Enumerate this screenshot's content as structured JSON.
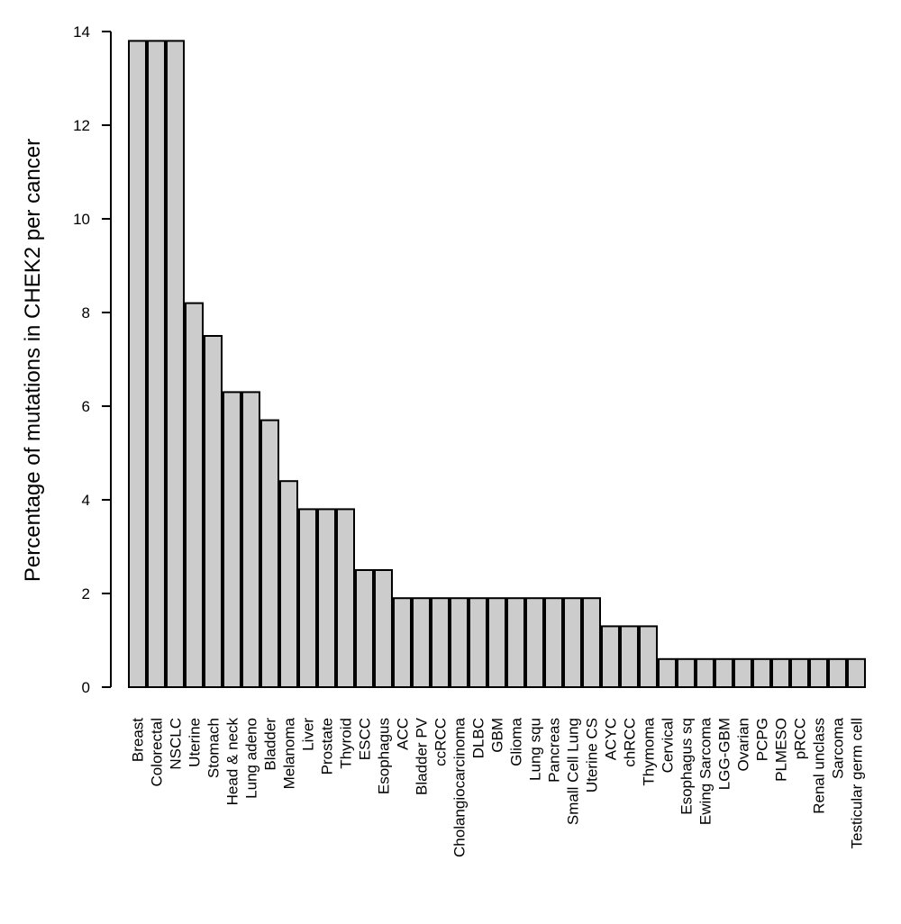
{
  "chart_data": {
    "type": "bar",
    "title": "",
    "xlabel": "",
    "ylabel": "Percentage of mutations in CHEK2 per cancer",
    "ylim": [
      0,
      14
    ],
    "yticks": [
      0,
      2,
      4,
      6,
      8,
      10,
      12,
      14
    ],
    "grid": false,
    "bar_color": "#cccccc",
    "edge_color": "#000000",
    "categories": [
      "Breast",
      "Colorectal",
      "NSCLC",
      "Uterine",
      "Stomach",
      "Head & neck",
      "Lung adeno",
      "Bladder",
      "Melanoma",
      "Liver",
      "Prostate",
      "Thyroid",
      "ESCC",
      "Esophagus",
      "ACC",
      "Bladder PV",
      "ccRCC",
      "Cholangiocarcinoma",
      "DLBC",
      "GBM",
      "Glioma",
      "Lung squ",
      "Pancreas",
      "Small Cell Lung",
      "Uterine CS",
      "ACYC",
      "chRCC",
      "Thymoma",
      "Cervical",
      "Esophagus sq",
      "Ewing Sarcoma",
      "LGG-GBM",
      "Ovarian",
      "PCPG",
      "PLMESO",
      "pRCC",
      "Renal unclass",
      "Sarcoma",
      "Testicular germ cell"
    ],
    "values": [
      13.8,
      13.8,
      13.8,
      8.2,
      7.5,
      6.3,
      6.3,
      5.7,
      4.4,
      3.8,
      3.8,
      3.8,
      2.5,
      2.5,
      1.9,
      1.9,
      1.9,
      1.9,
      1.9,
      1.9,
      1.9,
      1.9,
      1.9,
      1.9,
      1.9,
      1.3,
      1.3,
      1.3,
      0.6,
      0.6,
      0.6,
      0.6,
      0.6,
      0.6,
      0.6,
      0.6,
      0.6,
      0.6,
      0.6
    ]
  }
}
